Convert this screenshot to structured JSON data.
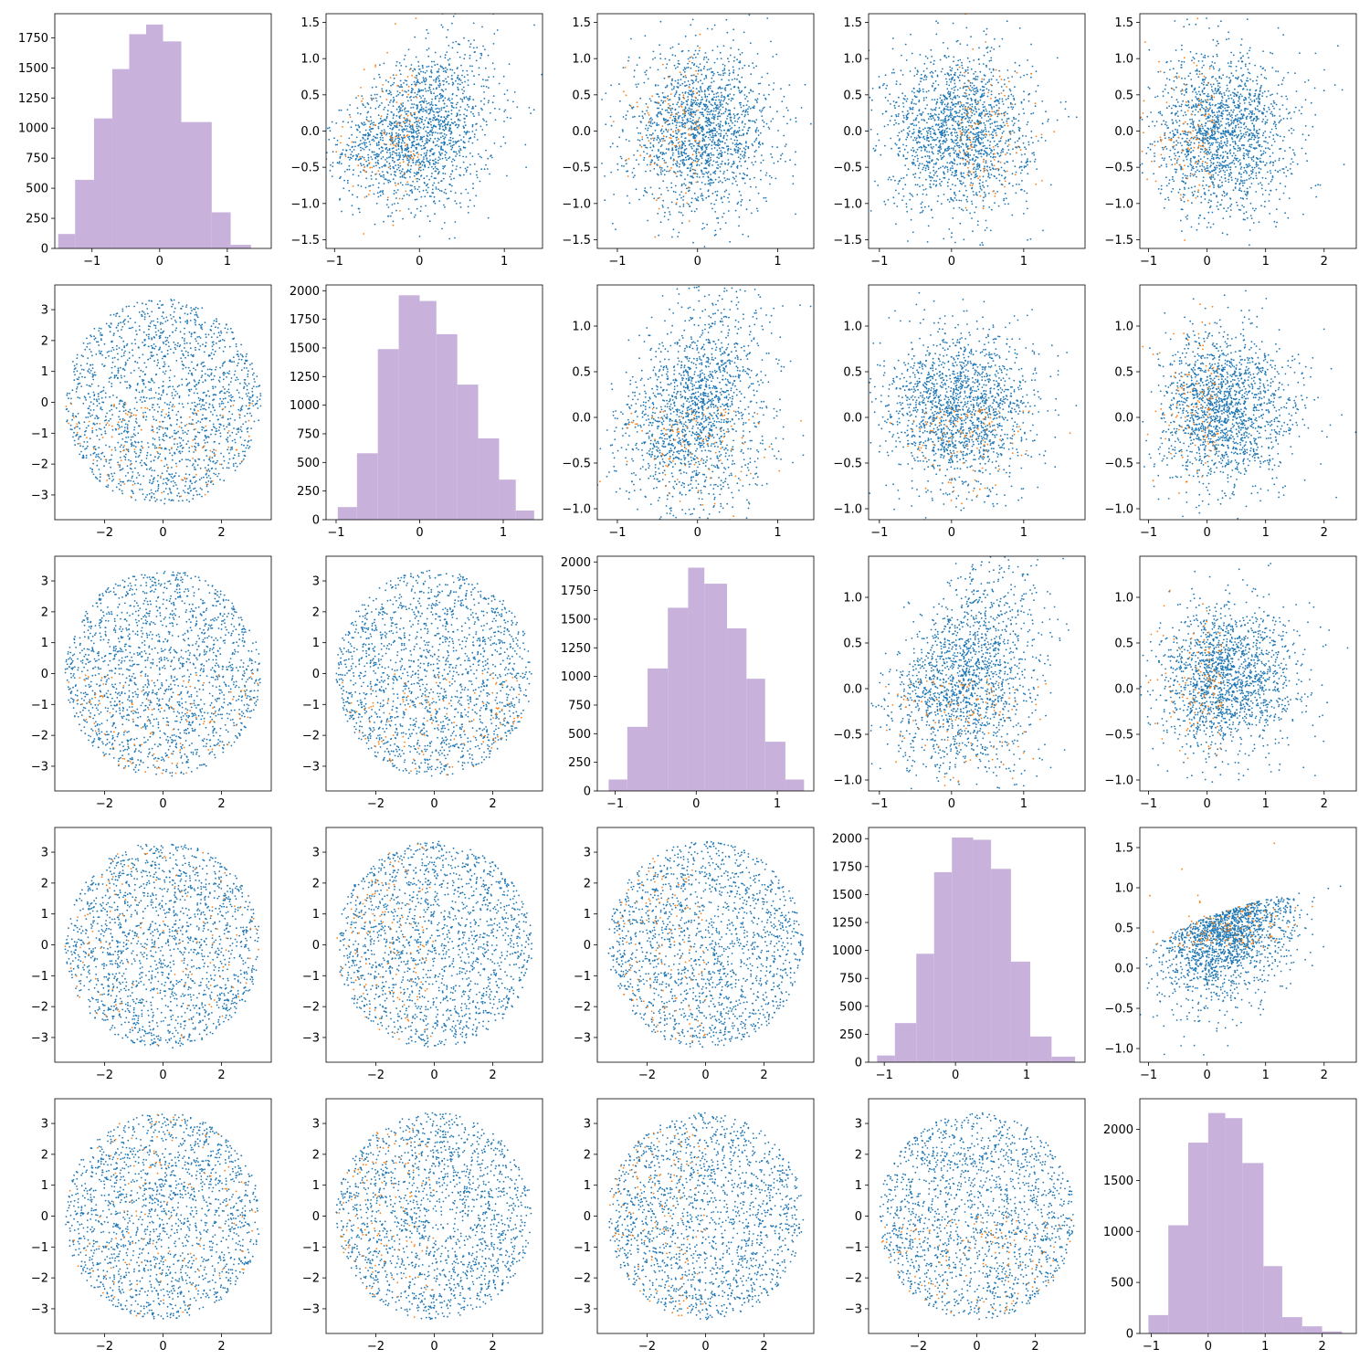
{
  "chart_data": {
    "type": "scatter",
    "layout": "5x5 pair-plot grid: histograms on diagonal, scatter plots off-diagonal",
    "colors": {
      "scatter_main": "#1f77b4",
      "scatter_highlight": "#ff7f0e",
      "histogram": "#c8b2dc"
    },
    "panels": [
      {
        "row": 0,
        "col": 0,
        "type": "hist",
        "xlim": [
          -1.55,
          1.65
        ],
        "ylim": [
          0,
          1950
        ],
        "xticks": [
          -1,
          0,
          1
        ],
        "yticks": [
          0,
          250,
          500,
          750,
          1000,
          1250,
          1500,
          1750
        ],
        "bins": [
          [
            -1.5,
            -1.25,
            120
          ],
          [
            -1.25,
            -0.97,
            570
          ],
          [
            -0.97,
            -0.7,
            1080
          ],
          [
            -0.7,
            -0.45,
            1490
          ],
          [
            -0.45,
            -0.2,
            1780
          ],
          [
            -0.2,
            0.05,
            1860
          ],
          [
            0.05,
            0.32,
            1720
          ],
          [
            0.32,
            0.77,
            1050
          ],
          [
            0.77,
            1.05,
            300
          ],
          [
            1.05,
            1.35,
            30
          ]
        ]
      },
      {
        "row": 0,
        "col": 1,
        "type": "scatter",
        "xlim": [
          -1.1,
          1.45
        ],
        "ylim": [
          -1.62,
          1.62
        ],
        "xticks": [
          -1,
          0,
          1
        ],
        "yticks": [
          -1.5,
          -1.0,
          -0.5,
          0.0,
          0.5,
          1.0,
          1.5
        ],
        "shape": "fan",
        "cx": 0.0,
        "cy": 0.0,
        "sx": 0.45,
        "sy": 0.55,
        "hl_side": "left"
      },
      {
        "row": 0,
        "col": 2,
        "type": "scatter",
        "xlim": [
          -1.25,
          1.45
        ],
        "ylim": [
          -1.62,
          1.62
        ],
        "xticks": [
          -1,
          0,
          1
        ],
        "yticks": [
          -1.5,
          -1.0,
          -0.5,
          0.0,
          0.5,
          1.0,
          1.5
        ],
        "shape": "blob",
        "cx": 0.05,
        "cy": 0.0,
        "sx": 0.45,
        "sy": 0.55,
        "hl_side": "left"
      },
      {
        "row": 0,
        "col": 3,
        "type": "scatter",
        "xlim": [
          -1.15,
          1.85
        ],
        "ylim": [
          -1.62,
          1.62
        ],
        "xticks": [
          -1,
          0,
          1
        ],
        "yticks": [
          -1.5,
          -1.0,
          -0.5,
          0.0,
          0.5,
          1.0,
          1.5
        ],
        "shape": "blob",
        "cx": 0.1,
        "cy": 0.0,
        "sx": 0.5,
        "sy": 0.55,
        "hl_side": "right"
      },
      {
        "row": 0,
        "col": 4,
        "type": "scatter",
        "xlim": [
          -1.15,
          2.55
        ],
        "ylim": [
          -1.62,
          1.62
        ],
        "xticks": [
          -1,
          0,
          1,
          2
        ],
        "yticks": [
          -1.5,
          -1.0,
          -0.5,
          0.0,
          0.5,
          1.0,
          1.5
        ],
        "shape": "skew",
        "cx": 0.15,
        "cy": 0.0,
        "sx": 0.55,
        "sy": 0.55,
        "hl_side": "left"
      },
      {
        "row": 1,
        "col": 0,
        "type": "scatter",
        "xlim": [
          -3.7,
          3.7
        ],
        "ylim": [
          -3.8,
          3.8
        ],
        "xticks": [
          -2,
          0,
          2
        ],
        "yticks": [
          -3,
          -2,
          -1,
          0,
          1,
          2,
          3
        ],
        "shape": "disc",
        "cx": 0.0,
        "cy": 0.0,
        "sx": 1.2,
        "sy": 1.2,
        "hl_side": "bottom"
      },
      {
        "row": 1,
        "col": 1,
        "type": "hist",
        "xlim": [
          -1.12,
          1.47
        ],
        "ylim": [
          0,
          2050
        ],
        "xticks": [
          -1,
          0,
          1
        ],
        "yticks": [
          0,
          250,
          500,
          750,
          1000,
          1250,
          1500,
          1750,
          2000
        ],
        "bins": [
          [
            -0.98,
            -0.75,
            110
          ],
          [
            -0.75,
            -0.5,
            580
          ],
          [
            -0.5,
            -0.25,
            1490
          ],
          [
            -0.25,
            0.0,
            1960
          ],
          [
            0.0,
            0.2,
            1910
          ],
          [
            0.2,
            0.45,
            1620
          ],
          [
            0.45,
            0.7,
            1180
          ],
          [
            0.7,
            0.95,
            710
          ],
          [
            0.95,
            1.15,
            350
          ],
          [
            1.15,
            1.37,
            80
          ]
        ]
      },
      {
        "row": 1,
        "col": 2,
        "type": "scatter",
        "xlim": [
          -1.25,
          1.45
        ],
        "ylim": [
          -1.12,
          1.45
        ],
        "xticks": [
          -1,
          0,
          1
        ],
        "yticks": [
          -1.0,
          -0.5,
          0.0,
          0.5,
          1.0
        ],
        "shape": "fan",
        "cx": 0.0,
        "cy": 0.1,
        "sx": 0.45,
        "sy": 0.4,
        "hl_side": "bottom"
      },
      {
        "row": 1,
        "col": 3,
        "type": "scatter",
        "xlim": [
          -1.15,
          1.85
        ],
        "ylim": [
          -1.12,
          1.45
        ],
        "xticks": [
          -1,
          0,
          1
        ],
        "yticks": [
          -1.0,
          -0.5,
          0.0,
          0.5,
          1.0
        ],
        "shape": "blob",
        "cx": 0.1,
        "cy": 0.1,
        "sx": 0.5,
        "sy": 0.42,
        "hl_side": "bottom"
      },
      {
        "row": 1,
        "col": 4,
        "type": "scatter",
        "xlim": [
          -1.15,
          2.55
        ],
        "ylim": [
          -1.12,
          1.45
        ],
        "xticks": [
          -1,
          0,
          1,
          2
        ],
        "yticks": [
          -1.0,
          -0.5,
          0.0,
          0.5,
          1.0
        ],
        "shape": "skew",
        "cx": 0.2,
        "cy": 0.1,
        "sx": 0.55,
        "sy": 0.42,
        "hl_side": "left"
      },
      {
        "row": 2,
        "col": 0,
        "type": "scatter",
        "xlim": [
          -3.7,
          3.7
        ],
        "ylim": [
          -3.8,
          3.8
        ],
        "xticks": [
          -2,
          0,
          2
        ],
        "yticks": [
          -3,
          -2,
          -1,
          0,
          1,
          2,
          3
        ],
        "shape": "disc",
        "cx": 0.0,
        "cy": 0.0,
        "sx": 1.2,
        "sy": 1.2,
        "hl_side": "bottom"
      },
      {
        "row": 2,
        "col": 1,
        "type": "scatter",
        "xlim": [
          -3.7,
          3.7
        ],
        "ylim": [
          -3.8,
          3.8
        ],
        "xticks": [
          -2,
          0,
          2
        ],
        "yticks": [
          -3,
          -2,
          -1,
          0,
          1,
          2,
          3
        ],
        "shape": "disc",
        "cx": 0.0,
        "cy": 0.0,
        "sx": 1.2,
        "sy": 1.2,
        "hl_side": "bottom"
      },
      {
        "row": 2,
        "col": 2,
        "type": "hist",
        "xlim": [
          -1.22,
          1.45
        ],
        "ylim": [
          0,
          2050
        ],
        "xticks": [
          -1,
          0,
          1
        ],
        "yticks": [
          0,
          250,
          500,
          750,
          1000,
          1250,
          1500,
          1750,
          2000
        ],
        "bins": [
          [
            -1.08,
            -0.85,
            100
          ],
          [
            -0.85,
            -0.6,
            560
          ],
          [
            -0.6,
            -0.35,
            1070
          ],
          [
            -0.35,
            -0.1,
            1600
          ],
          [
            -0.1,
            0.1,
            1950
          ],
          [
            0.1,
            0.38,
            1810
          ],
          [
            0.38,
            0.62,
            1420
          ],
          [
            0.62,
            0.85,
            980
          ],
          [
            0.85,
            1.1,
            430
          ],
          [
            1.1,
            1.33,
            100
          ]
        ]
      },
      {
        "row": 2,
        "col": 3,
        "type": "scatter",
        "xlim": [
          -1.15,
          1.85
        ],
        "ylim": [
          -1.12,
          1.45
        ],
        "xticks": [
          -1,
          0,
          1
        ],
        "yticks": [
          -1.0,
          -0.5,
          0.0,
          0.5,
          1.0
        ],
        "shape": "fan",
        "cx": 0.2,
        "cy": 0.1,
        "sx": 0.5,
        "sy": 0.4,
        "hl_side": "bottom"
      },
      {
        "row": 2,
        "col": 4,
        "type": "scatter",
        "xlim": [
          -1.15,
          2.55
        ],
        "ylim": [
          -1.12,
          1.45
        ],
        "xticks": [
          -1,
          0,
          1,
          2
        ],
        "yticks": [
          -1.0,
          -0.5,
          0.0,
          0.5,
          1.0
        ],
        "shape": "skew",
        "cx": 0.25,
        "cy": 0.1,
        "sx": 0.55,
        "sy": 0.4,
        "hl_side": "left"
      },
      {
        "row": 3,
        "col": 0,
        "type": "scatter",
        "xlim": [
          -3.7,
          3.7
        ],
        "ylim": [
          -3.8,
          3.8
        ],
        "xticks": [
          -2,
          0,
          2
        ],
        "yticks": [
          -3,
          -2,
          -1,
          0,
          1,
          2,
          3
        ],
        "shape": "disc",
        "cx": 0.0,
        "cy": 0.0,
        "sx": 1.2,
        "sy": 1.2,
        "hl_side": "none"
      },
      {
        "row": 3,
        "col": 1,
        "type": "scatter",
        "xlim": [
          -3.7,
          3.7
        ],
        "ylim": [
          -3.8,
          3.8
        ],
        "xticks": [
          -2,
          0,
          2
        ],
        "yticks": [
          -3,
          -2,
          -1,
          0,
          1,
          2,
          3
        ],
        "shape": "disc",
        "cx": 0.0,
        "cy": 0.0,
        "sx": 1.2,
        "sy": 1.2,
        "hl_side": "left"
      },
      {
        "row": 3,
        "col": 2,
        "type": "scatter",
        "xlim": [
          -3.7,
          3.7
        ],
        "ylim": [
          -3.8,
          3.8
        ],
        "xticks": [
          -2,
          0,
          2
        ],
        "yticks": [
          -3,
          -2,
          -1,
          0,
          1,
          2,
          3
        ],
        "shape": "disc",
        "cx": 0.0,
        "cy": 0.0,
        "sx": 1.2,
        "sy": 1.2,
        "hl_side": "left"
      },
      {
        "row": 3,
        "col": 3,
        "type": "hist",
        "xlim": [
          -1.22,
          1.82
        ],
        "ylim": [
          0,
          2100
        ],
        "xticks": [
          -1,
          0,
          1
        ],
        "yticks": [
          0,
          250,
          500,
          750,
          1000,
          1250,
          1500,
          1750,
          2000
        ],
        "bins": [
          [
            -1.1,
            -0.85,
            60
          ],
          [
            -0.85,
            -0.55,
            350
          ],
          [
            -0.55,
            -0.3,
            970
          ],
          [
            -0.3,
            -0.05,
            1700
          ],
          [
            -0.05,
            0.25,
            2010
          ],
          [
            0.25,
            0.5,
            1990
          ],
          [
            0.5,
            0.78,
            1730
          ],
          [
            0.78,
            1.05,
            900
          ],
          [
            1.05,
            1.35,
            230
          ],
          [
            1.35,
            1.68,
            50
          ]
        ]
      },
      {
        "row": 3,
        "col": 4,
        "type": "scatter",
        "xlim": [
          -1.15,
          2.55
        ],
        "ylim": [
          -1.17,
          1.75
        ],
        "xticks": [
          -1,
          0,
          1,
          2
        ],
        "yticks": [
          -1.0,
          -0.5,
          0.0,
          0.5,
          1.0,
          1.5
        ],
        "shape": "curve",
        "cx": 0.3,
        "cy": 0.25,
        "sx": 0.55,
        "sy": 0.45,
        "hl_side": "top"
      },
      {
        "row": 4,
        "col": 0,
        "type": "scatter",
        "xlim": [
          -3.7,
          3.7
        ],
        "ylim": [
          -3.8,
          3.8
        ],
        "xticks": [
          -2,
          0,
          2
        ],
        "yticks": [
          -3,
          -2,
          -1,
          0,
          1,
          2,
          3
        ],
        "shape": "disc",
        "cx": 0.0,
        "cy": 0.0,
        "sx": 1.2,
        "sy": 1.2,
        "hl_side": "none"
      },
      {
        "row": 4,
        "col": 1,
        "type": "scatter",
        "xlim": [
          -3.7,
          3.7
        ],
        "ylim": [
          -3.8,
          3.8
        ],
        "xticks": [
          -2,
          0,
          2
        ],
        "yticks": [
          -3,
          -2,
          -1,
          0,
          1,
          2,
          3
        ],
        "shape": "disc",
        "cx": 0.0,
        "cy": 0.0,
        "sx": 1.2,
        "sy": 1.2,
        "hl_side": "left"
      },
      {
        "row": 4,
        "col": 2,
        "type": "scatter",
        "xlim": [
          -3.7,
          3.7
        ],
        "ylim": [
          -3.8,
          3.8
        ],
        "xticks": [
          -2,
          0,
          2
        ],
        "yticks": [
          -3,
          -2,
          -1,
          0,
          1,
          2,
          3
        ],
        "shape": "disc",
        "cx": 0.0,
        "cy": 0.0,
        "sx": 1.2,
        "sy": 1.2,
        "hl_side": "left"
      },
      {
        "row": 4,
        "col": 3,
        "type": "scatter",
        "xlim": [
          -3.7,
          3.7
        ],
        "ylim": [
          -3.8,
          3.8
        ],
        "xticks": [
          -2,
          0,
          2
        ],
        "yticks": [
          -3,
          -2,
          -1,
          0,
          1,
          2,
          3
        ],
        "shape": "disc",
        "cx": 0.0,
        "cy": 0.0,
        "sx": 1.2,
        "sy": 1.2,
        "hl_side": "bottom"
      },
      {
        "row": 4,
        "col": 4,
        "type": "hist",
        "xlim": [
          -1.2,
          2.6
        ],
        "ylim": [
          0,
          2300
        ],
        "xticks": [
          -1,
          0,
          1,
          2
        ],
        "yticks": [
          0,
          500,
          1000,
          1500,
          2000
        ],
        "bins": [
          [
            -1.05,
            -0.7,
            180
          ],
          [
            -0.7,
            -0.35,
            1060
          ],
          [
            -0.35,
            0.0,
            1870
          ],
          [
            0.0,
            0.3,
            2160
          ],
          [
            0.3,
            0.6,
            2110
          ],
          [
            0.6,
            0.97,
            1670
          ],
          [
            0.97,
            1.3,
            660
          ],
          [
            1.3,
            1.65,
            160
          ],
          [
            1.65,
            2.0,
            70
          ],
          [
            2.0,
            2.35,
            20
          ]
        ]
      }
    ]
  }
}
